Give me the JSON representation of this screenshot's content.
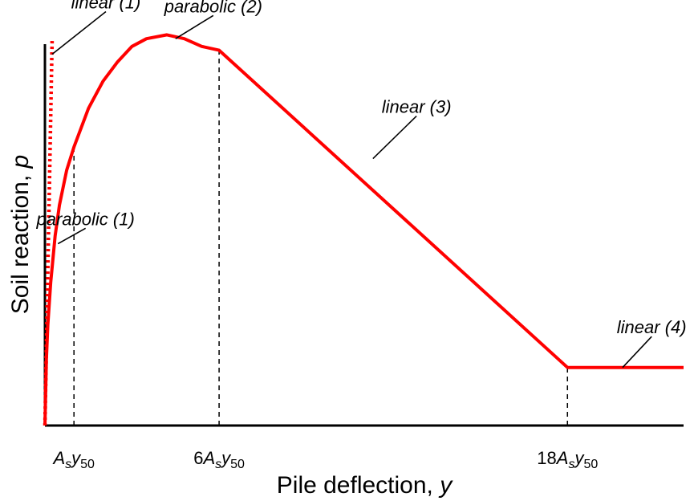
{
  "chart_data": {
    "type": "line",
    "title": "",
    "xlabel": "Pile deflection, ",
    "xlabel_var": "y",
    "ylabel": "Soil reaction, ",
    "ylabel_var": "p",
    "grid": false,
    "legend": "none",
    "x_unit": "A_s y_50",
    "xlim": [
      0,
      22
    ],
    "ylim": [
      0,
      1.1
    ],
    "ticks": [
      {
        "x": 1,
        "coef": "",
        "A": "A",
        "sub_s": "s",
        "y": "y",
        "sub_50": "50"
      },
      {
        "x": 6,
        "coef": "6",
        "A": "A",
        "sub_s": "s",
        "y": "y",
        "sub_50": "50"
      },
      {
        "x": 18,
        "coef": "18",
        "A": "A",
        "sub_s": "s",
        "y": "y",
        "sub_50": "50"
      }
    ],
    "series": [
      {
        "style": "solid",
        "color": "#ff0000",
        "points": [
          [
            0,
            0
          ],
          [
            0.05,
            0.17
          ],
          [
            0.1,
            0.26
          ],
          [
            0.2,
            0.37
          ],
          [
            0.35,
            0.49
          ],
          [
            0.5,
            0.57
          ],
          [
            0.75,
            0.66
          ],
          [
            1.0,
            0.72
          ],
          [
            1.5,
            0.82
          ],
          [
            2.0,
            0.89
          ],
          [
            2.5,
            0.94
          ],
          [
            3.0,
            0.98
          ],
          [
            3.5,
            1.0
          ],
          [
            4.2,
            1.01
          ],
          [
            4.8,
            1.0
          ],
          [
            5.4,
            0.98
          ],
          [
            6.0,
            0.97
          ],
          [
            18.0,
            0.15
          ],
          [
            22.0,
            0.15
          ]
        ]
      },
      {
        "style": "dotted",
        "color": "#ff0000",
        "points": [
          [
            0,
            0
          ],
          [
            0.25,
            1.0
          ]
        ]
      }
    ],
    "dashed_guides": [
      {
        "x": 1.0,
        "y": 0.72
      },
      {
        "x": 6.0,
        "y": 0.97
      },
      {
        "x": 18.0,
        "y": 0.15
      }
    ],
    "annotations": [
      {
        "text": "linear (1)",
        "at": [
          0.25,
          0.96
        ],
        "from": [
          2.1,
          1.07
        ]
      },
      {
        "text": "parabolic (2)",
        "at": [
          4.5,
          1.0
        ],
        "from": [
          5.8,
          1.06
        ]
      },
      {
        "text": "linear (3)",
        "at": [
          11.3,
          0.69
        ],
        "from": [
          12.8,
          0.8
        ]
      },
      {
        "text": "parabolic (1)",
        "at": [
          0.45,
          0.47
        ],
        "from": [
          1.4,
          0.51
        ]
      },
      {
        "text": "linear (4)",
        "at": [
          19.9,
          0.15
        ],
        "from": [
          20.9,
          0.23
        ]
      }
    ]
  }
}
